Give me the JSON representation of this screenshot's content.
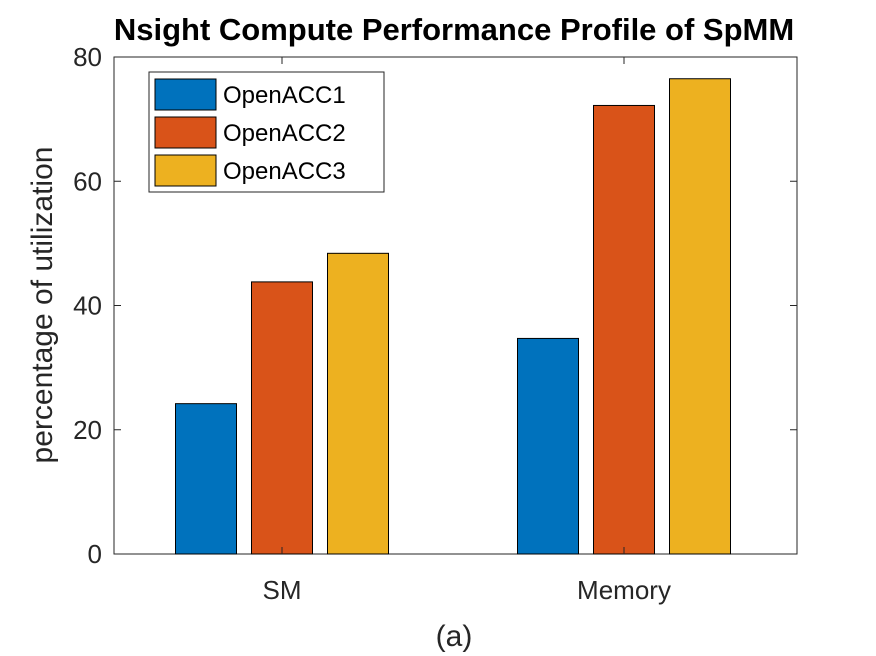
{
  "chart_data": {
    "type": "bar",
    "title": "Nsight Compute Performance Profile of SpMM",
    "xlabel": "",
    "ylabel": "percentage of utilization",
    "caption": "(a)",
    "categories": [
      "SM",
      "Memory"
    ],
    "ylim": [
      0,
      80
    ],
    "yticks": [
      0,
      20,
      40,
      60,
      80
    ],
    "grid": false,
    "legend_position": "top-left",
    "series": [
      {
        "name": "OpenACC1",
        "color": "#0072BD",
        "values": [
          24.2,
          34.7
        ]
      },
      {
        "name": "OpenACC2",
        "color": "#D95319",
        "values": [
          43.8,
          72.2
        ]
      },
      {
        "name": "OpenACC3",
        "color": "#EDB120",
        "values": [
          48.4,
          76.5
        ]
      }
    ]
  }
}
